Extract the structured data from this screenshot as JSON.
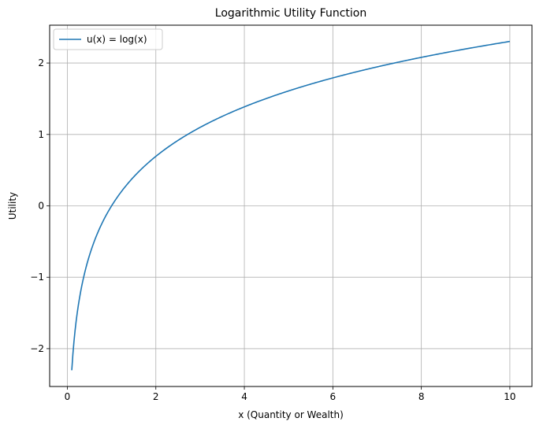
{
  "chart_data": {
    "type": "line",
    "title": "Logarithmic Utility Function",
    "xlabel": "x (Quantity or Wealth)",
    "ylabel": "Utility",
    "xlim": [
      -0.4,
      10.5
    ],
    "ylim": [
      -2.53,
      2.53
    ],
    "xticks": [
      0,
      2,
      4,
      6,
      8,
      10
    ],
    "yticks": [
      -2,
      -1,
      0,
      1,
      2
    ],
    "xtick_labels": [
      "0",
      "2",
      "4",
      "6",
      "8",
      "10"
    ],
    "ytick_labels": [
      "−2",
      "−1",
      "0",
      "1",
      "2"
    ],
    "grid": true,
    "legend_position": "top-left",
    "series": [
      {
        "name": "u(x) = log(x)",
        "color": "#1f77b4",
        "function": "log",
        "domain": [
          0.1,
          10
        ]
      }
    ]
  }
}
